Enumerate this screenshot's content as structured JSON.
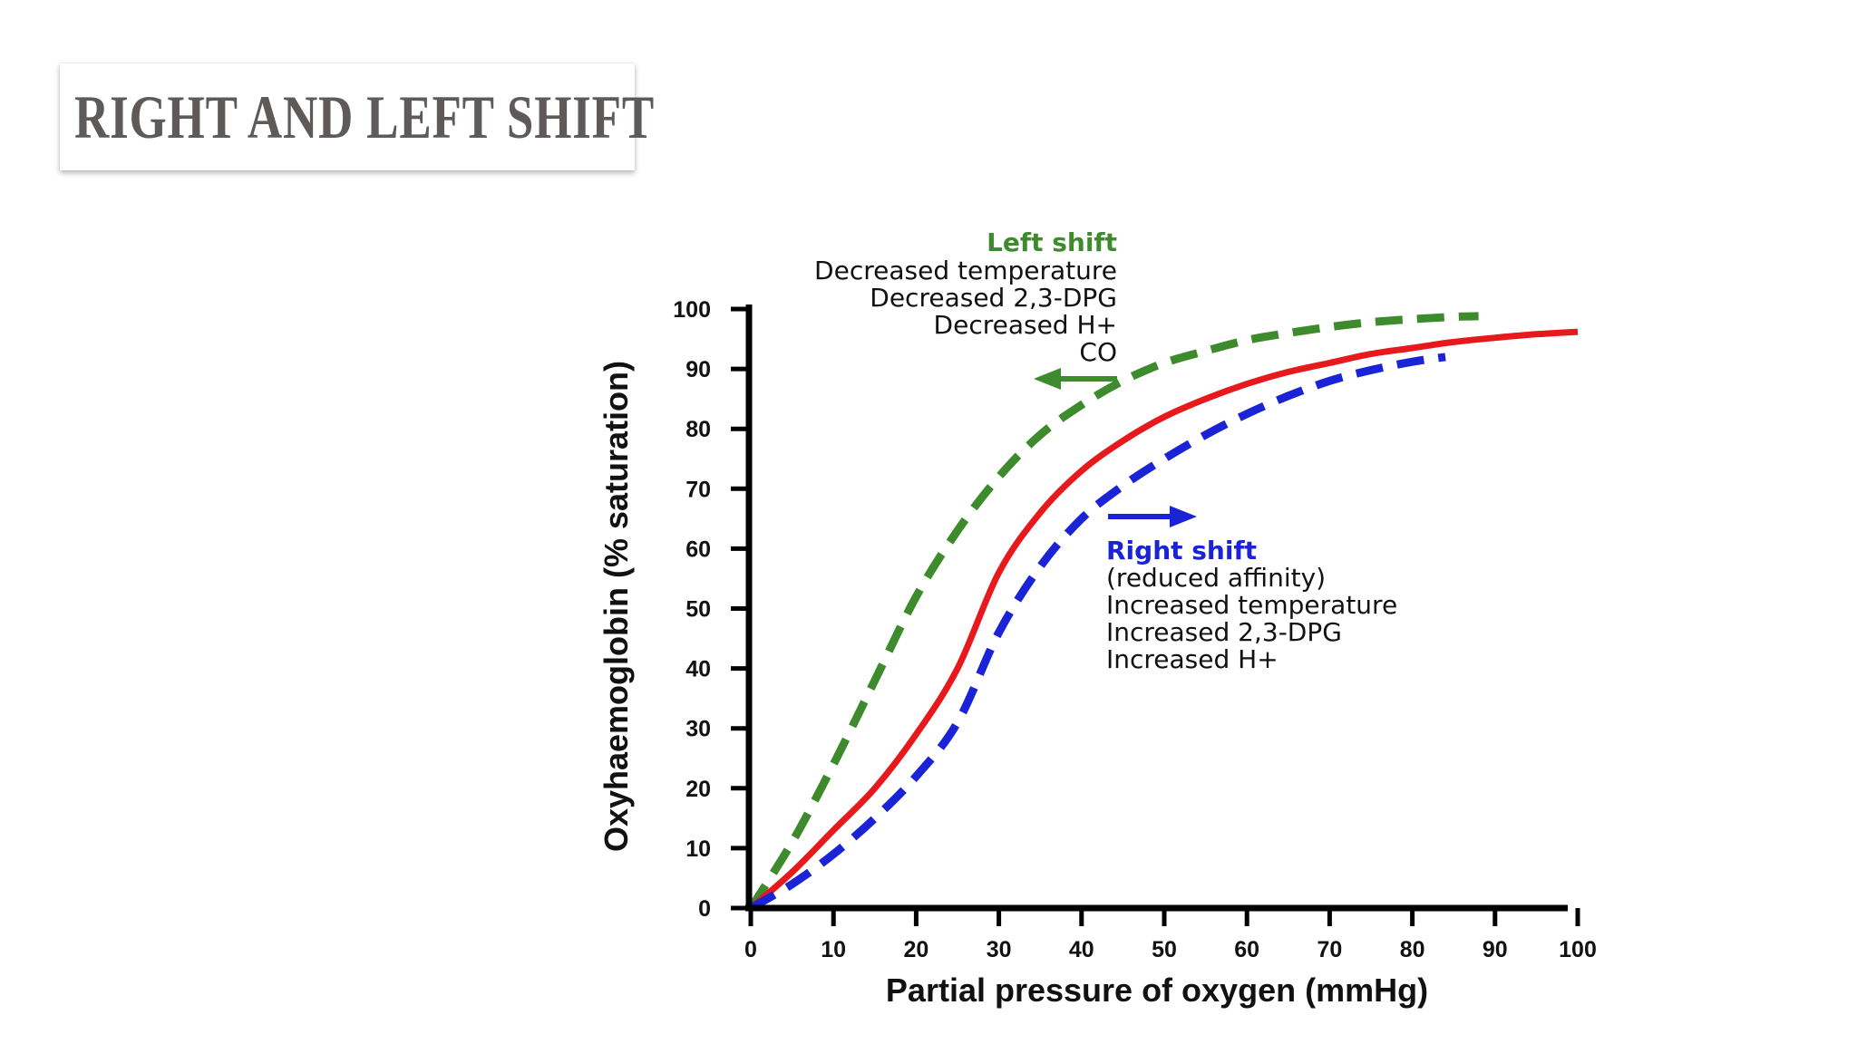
{
  "slide": {
    "title": "RIGHT AND LEFT SHIFT"
  },
  "chart_data": {
    "type": "line",
    "xlabel": "Partial pressure of oxygen (mmHg)",
    "ylabel": "Oxyhaemoglobin (% saturation)",
    "xlim": [
      0,
      100
    ],
    "ylim": [
      0,
      100
    ],
    "xticks": [
      0,
      10,
      20,
      30,
      40,
      50,
      60,
      70,
      80,
      90,
      100
    ],
    "yticks": [
      0,
      10,
      20,
      30,
      40,
      50,
      60,
      70,
      80,
      90,
      100
    ],
    "grid": false,
    "colors": {
      "left": "#3e8b2e",
      "normal": "#e8191c",
      "right": "#1a23d6",
      "axis": "#000000"
    },
    "series": [
      {
        "key": "left",
        "style": "dashed",
        "x": [
          0,
          5,
          10,
          15,
          20,
          25,
          30,
          35,
          40,
          45,
          50,
          55,
          60,
          65,
          70,
          75,
          80,
          85,
          88
        ],
        "y": [
          0,
          11,
          24,
          38,
          52,
          63,
          72,
          79,
          84,
          88,
          91,
          93,
          94.8,
          96,
          97,
          97.8,
          98.3,
          98.7,
          98.8
        ]
      },
      {
        "key": "normal",
        "style": "solid",
        "x": [
          0,
          5,
          10,
          15,
          20,
          25,
          30,
          35,
          40,
          45,
          50,
          55,
          60,
          65,
          70,
          75,
          80,
          85,
          90,
          95,
          100
        ],
        "y": [
          0,
          6,
          13,
          20,
          29,
          40,
          56,
          66,
          73,
          78,
          82,
          85,
          87.5,
          89.5,
          91,
          92.5,
          93.5,
          94.5,
          95.2,
          95.8,
          96.2
        ]
      },
      {
        "key": "right",
        "style": "dashed",
        "x": [
          0,
          5,
          10,
          15,
          20,
          25,
          30,
          35,
          40,
          45,
          50,
          55,
          60,
          65,
          70,
          75,
          80,
          84
        ],
        "y": [
          0,
          4,
          9,
          15,
          22,
          31,
          46,
          57,
          65,
          70.5,
          75,
          79,
          82.5,
          85.5,
          88,
          89.8,
          91.2,
          92
        ]
      }
    ],
    "annotations": {
      "left_shift": {
        "title": "Left shift",
        "lines": [
          "Decreased temperature",
          "Decreased 2,3-DPG",
          "Decreased H+",
          "CO"
        ]
      },
      "right_shift": {
        "title": "Right shift",
        "lines": [
          "(reduced affinity)",
          "Increased temperature",
          "Increased 2,3-DPG",
          "Increased H+"
        ]
      }
    }
  }
}
